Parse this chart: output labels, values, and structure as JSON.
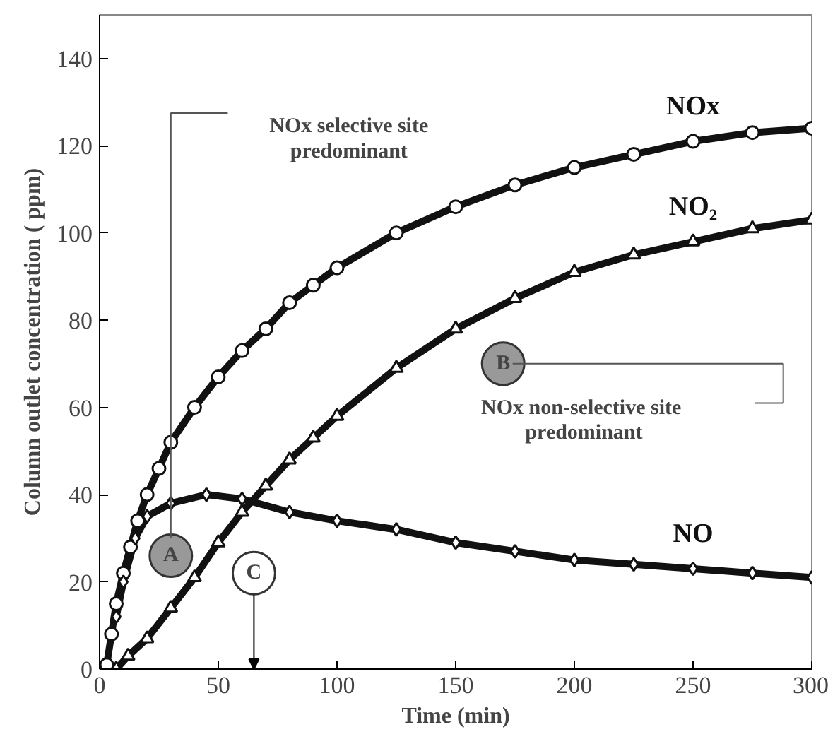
{
  "chart_data": {
    "type": "line",
    "xlabel": "Time (min)",
    "ylabel": "Column outlet concentration ( ppm)",
    "xlim": [
      0,
      300
    ],
    "ylim": [
      0,
      150
    ],
    "xticks": [
      0,
      50,
      100,
      150,
      200,
      250,
      300
    ],
    "yticks": [
      0,
      20,
      40,
      60,
      80,
      100,
      120,
      140
    ],
    "line_style": "solid",
    "series": [
      {
        "name": "NOx",
        "color": "#111111",
        "marker": "circle",
        "x": [
          3,
          5,
          7,
          10,
          13,
          16,
          20,
          25,
          30,
          40,
          50,
          60,
          70,
          80,
          90,
          100,
          125,
          150,
          175,
          200,
          225,
          250,
          275,
          300
        ],
        "values": [
          1,
          8,
          15,
          22,
          28,
          34,
          40,
          46,
          52,
          60,
          67,
          73,
          78,
          84,
          88,
          92,
          100,
          106,
          111,
          115,
          118,
          121,
          123,
          124
        ]
      },
      {
        "name": "NO₂",
        "color": "#111111",
        "marker": "triangle",
        "x": [
          7,
          12,
          20,
          30,
          40,
          50,
          60,
          70,
          80,
          90,
          100,
          125,
          150,
          175,
          200,
          225,
          250,
          275,
          300
        ],
        "values": [
          0,
          3,
          7,
          14,
          21,
          29,
          36,
          42,
          48,
          53,
          58,
          69,
          78,
          85,
          91,
          95,
          98,
          101,
          103
        ]
      },
      {
        "name": "NO",
        "color": "#111111",
        "marker": "diamond",
        "x": [
          7,
          10,
          15,
          20,
          30,
          45,
          60,
          80,
          100,
          125,
          150,
          175,
          200,
          225,
          250,
          275,
          300
        ],
        "values": [
          12,
          20,
          30,
          35,
          38,
          40,
          39,
          36,
          34,
          32,
          29,
          27,
          25,
          24,
          23,
          22,
          21
        ]
      }
    ],
    "annotations": [
      "NOx selective site\npredominant",
      {
        "text": "A",
        "x": 30,
        "y": 26
      },
      {
        "text": "C",
        "x": 65,
        "y": 22
      },
      {
        "text": "B",
        "x": 170,
        "y": 70
      },
      "NOx  non-selective site\npredominant"
    ]
  }
}
